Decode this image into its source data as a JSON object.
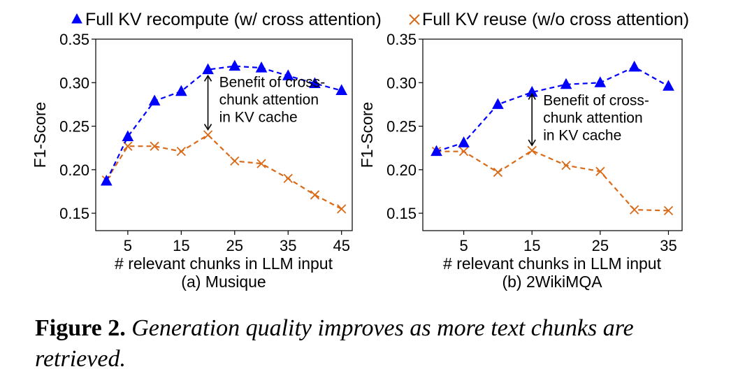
{
  "legend": [
    {
      "label": "Full KV recompute (w/ cross attention)",
      "color": "#0000ff",
      "marker": "triangle",
      "line": "dashed"
    },
    {
      "label": "Full KV reuse (w/o cross attention)",
      "color": "#d96a18",
      "marker": "x",
      "line": "dashed"
    }
  ],
  "chart_data": [
    {
      "type": "line",
      "panel_label": "(a) Musique",
      "xlabel": "# relevant chunks in LLM input",
      "ylabel": "F1-Score",
      "xlim": [
        -1,
        47
      ],
      "ylim": [
        0.13,
        0.35
      ],
      "xticks": [
        5,
        15,
        25,
        35,
        45
      ],
      "yticks": [
        0.15,
        0.2,
        0.25,
        0.3,
        0.35
      ],
      "ytick_labels": [
        "0.15",
        "0.20",
        "0.25",
        "0.30",
        "0.35"
      ],
      "annotation": {
        "lines": [
          "Benefit of cross-",
          "chunk attention",
          "in KV cache"
        ],
        "arrow_x": 20,
        "arrow_y_from": 0.246,
        "arrow_y_to": 0.308
      },
      "x": [
        1,
        5,
        10,
        15,
        20,
        25,
        30,
        35,
        40,
        45
      ],
      "series": [
        {
          "name": "Full KV recompute (w/ cross attention)",
          "values": [
            0.187,
            0.238,
            0.279,
            0.29,
            0.315,
            0.319,
            0.317,
            0.308,
            0.299,
            0.291
          ]
        },
        {
          "name": "Full KV reuse (w/o cross attention)",
          "values": [
            0.188,
            0.227,
            0.227,
            0.221,
            0.24,
            0.21,
            0.207,
            0.19,
            0.171,
            0.155
          ]
        }
      ]
    },
    {
      "type": "line",
      "panel_label": "(b) 2WikiMQA",
      "xlabel": "# relevant chunks in LLM input",
      "ylabel": "F1-Score",
      "xlim": [
        -1,
        37
      ],
      "ylim": [
        0.13,
        0.35
      ],
      "xticks": [
        5,
        15,
        25,
        35
      ],
      "yticks": [
        0.15,
        0.2,
        0.25,
        0.3,
        0.35
      ],
      "ytick_labels": [
        "0.15",
        "0.20",
        "0.25",
        "0.30",
        "0.35"
      ],
      "annotation": {
        "lines": [
          "Benefit of cross-",
          "chunk attention",
          "in KV cache"
        ],
        "arrow_x": 15,
        "arrow_y_from": 0.228,
        "arrow_y_to": 0.287
      },
      "x": [
        1,
        5,
        10,
        15,
        20,
        25,
        30,
        35
      ],
      "series": [
        {
          "name": "Full KV recompute (w/ cross attention)",
          "values": [
            0.221,
            0.231,
            0.275,
            0.289,
            0.298,
            0.3,
            0.318,
            0.296
          ]
        },
        {
          "name": "Full KV reuse (w/o cross attention)",
          "values": [
            0.221,
            0.221,
            0.197,
            0.222,
            0.205,
            0.198,
            0.154,
            0.153
          ]
        }
      ]
    }
  ],
  "caption": {
    "label": "Figure 2.",
    "text": "Generation quality improves as more text chunks are retrieved."
  }
}
